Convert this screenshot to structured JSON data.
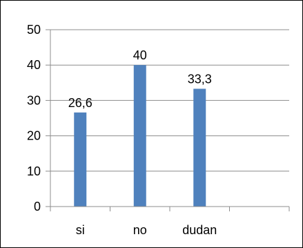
{
  "chart_data": {
    "type": "bar",
    "title": "",
    "xlabel": "",
    "ylabel": "",
    "categories": [
      "si",
      "no",
      "dudan",
      ""
    ],
    "values": [
      26.6,
      40,
      33.3,
      null
    ],
    "data_labels": [
      "26,6",
      "40",
      "33,3",
      ""
    ],
    "ylim": [
      0,
      50
    ],
    "yticks": [
      0,
      10,
      20,
      30,
      40,
      50
    ],
    "ytick_labels": [
      "0",
      "10",
      "20",
      "30",
      "40",
      "50"
    ],
    "grid": true,
    "legend": "none",
    "colors": {
      "bar": "#4f81bd",
      "grid": "#8c8c8c",
      "frame": "#000000"
    }
  }
}
